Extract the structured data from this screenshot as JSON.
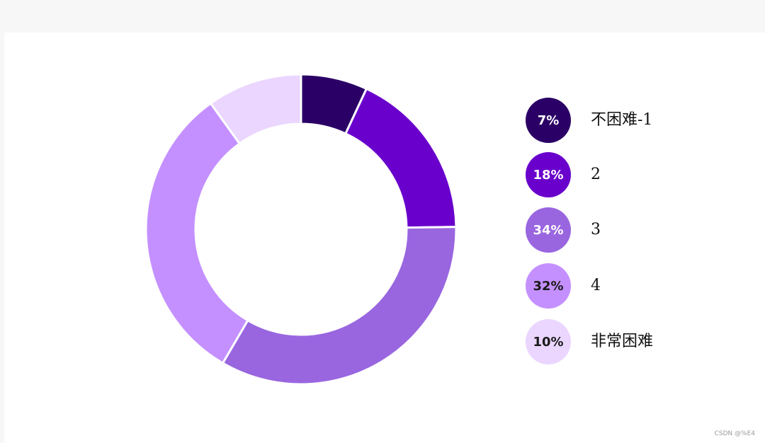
{
  "chart_data": {
    "type": "pie",
    "categories": [
      "不困难-1",
      "2",
      "3",
      "4",
      "非常困难"
    ],
    "values": [
      7,
      18,
      34,
      32,
      10
    ],
    "labels": [
      "7%",
      "18%",
      "34%",
      "32%",
      "10%"
    ],
    "colors": [
      "#2b0066",
      "#6a00cc",
      "#9966e0",
      "#c490ff",
      "#ead6ff"
    ],
    "label_colors": [
      "#ffffff",
      "#ffffff",
      "#ffffff",
      "#1a1a1a",
      "#1a1a1a"
    ],
    "legend_position": "right",
    "donut": true
  },
  "watermark": "CSDN @%E4"
}
